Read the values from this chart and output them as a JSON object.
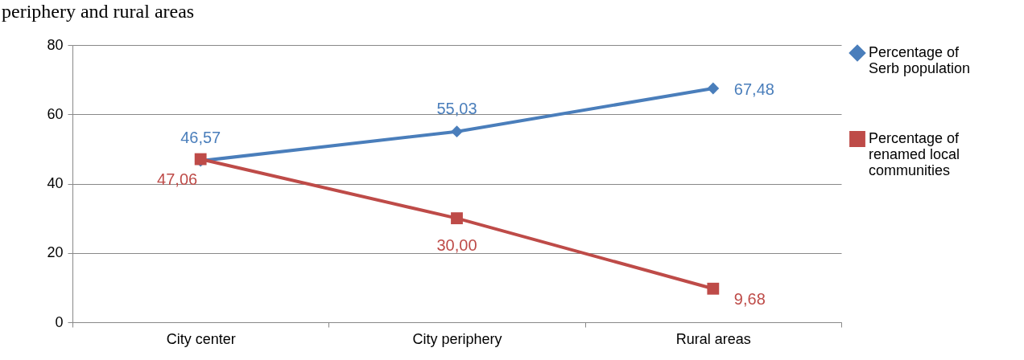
{
  "chart_data": {
    "type": "line",
    "title": "periphery and rural areas",
    "categories": [
      "City center",
      "City periphery",
      "Rural areas"
    ],
    "series": [
      {
        "name": "Percentage of Serb population",
        "color": "#4a7ebb",
        "marker": "diamond",
        "values": [
          46.57,
          55.03,
          67.48
        ],
        "value_labels": [
          "46,57",
          "55,03",
          "67,48"
        ]
      },
      {
        "name": "Percentage of renamed local communities",
        "color": "#be4b48",
        "marker": "square",
        "values": [
          47.06,
          30.0,
          9.68
        ],
        "value_labels": [
          "47,06",
          "30,00",
          "9,68"
        ]
      }
    ],
    "ylim": [
      0,
      80
    ],
    "yticks": [
      0,
      20,
      40,
      60,
      80
    ],
    "grid": "y",
    "legend": "right"
  }
}
